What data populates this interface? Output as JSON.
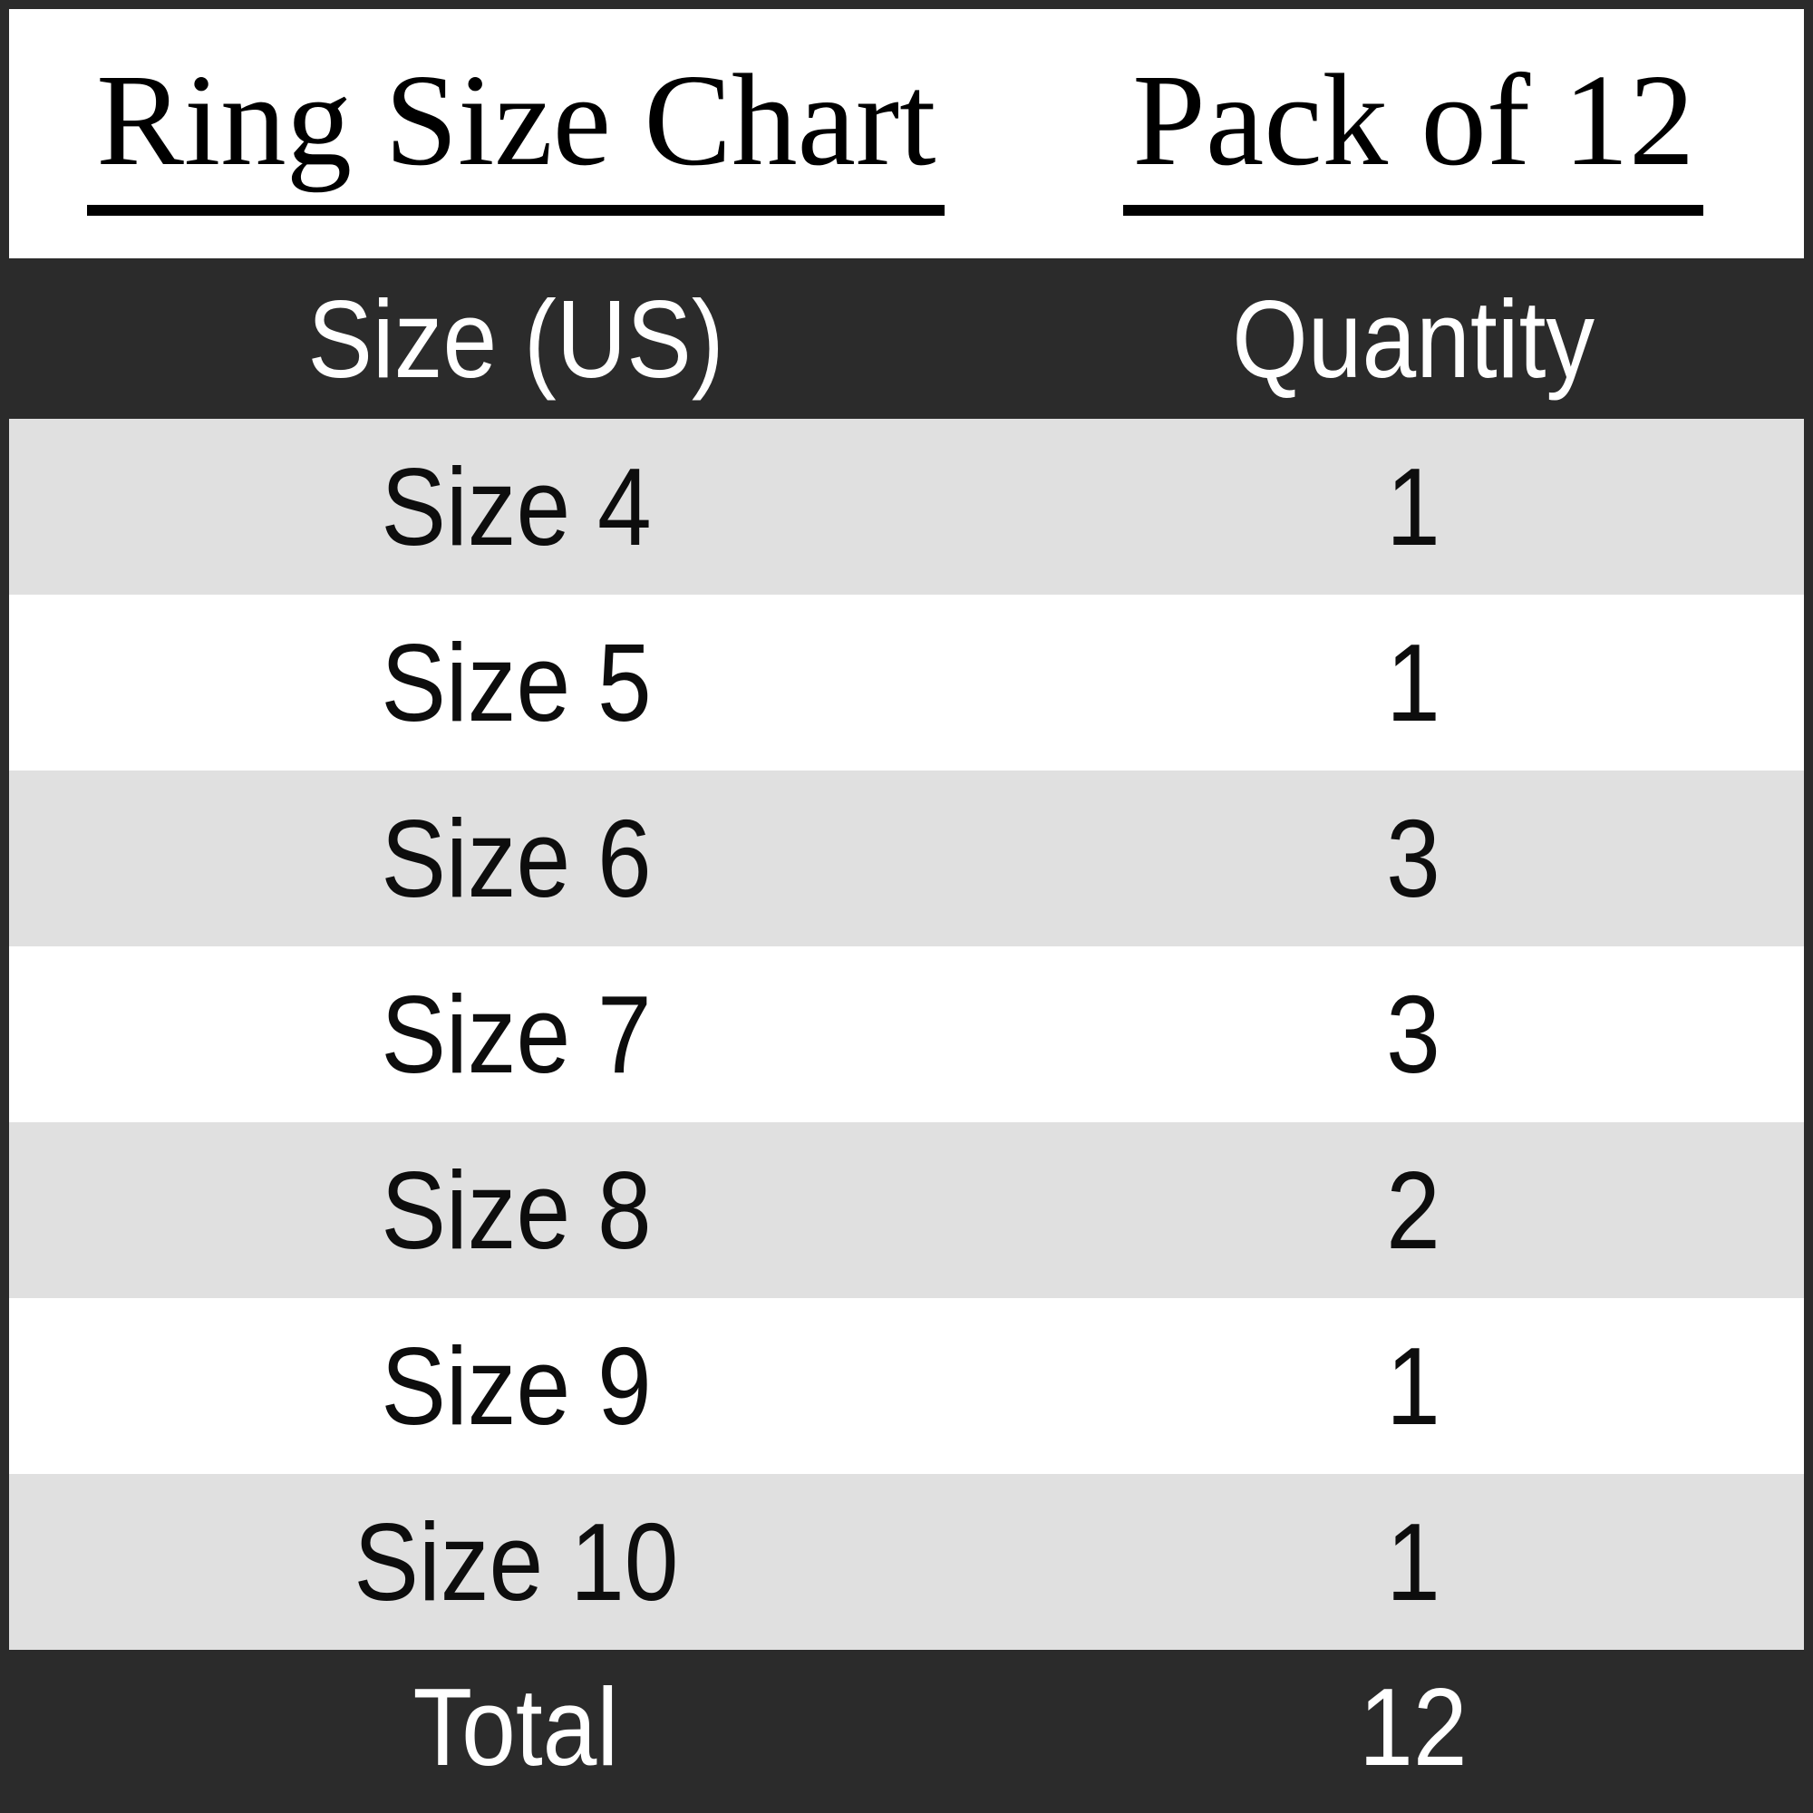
{
  "chart_data": {
    "type": "table",
    "title": "Ring Size Chart",
    "subtitle": "Pack of 12",
    "columns": [
      "Size (US)",
      "Quantity"
    ],
    "rows": [
      [
        "Size 4",
        "1"
      ],
      [
        "Size 5",
        "1"
      ],
      [
        "Size 6",
        "3"
      ],
      [
        "Size 7",
        "3"
      ],
      [
        "Size 8",
        "2"
      ],
      [
        "Size 9",
        "1"
      ],
      [
        "Size 10",
        "1"
      ]
    ],
    "total": {
      "label": "Total",
      "value": "12"
    }
  },
  "colors": {
    "header_footer_background": "#2b2b2b",
    "stripe_row_background": "#e0e0e0",
    "plain_row_background": "#ffffff",
    "text_on_dark": "#ffffff",
    "text_on_light": "#0d0d0d",
    "frame_border": "#2b2b2b",
    "title_underline": "#000000"
  }
}
